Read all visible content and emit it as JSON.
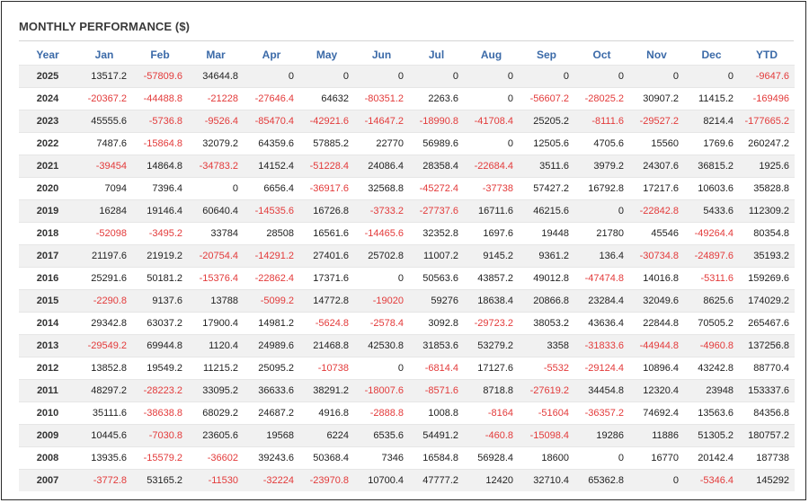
{
  "header": {
    "title": "MONTHLY PERFORMANCE ($)"
  },
  "colors": {
    "negative": "#e33a3a",
    "header_text": "#3b6aa8",
    "stripe": "#f1f1f1"
  },
  "table": {
    "columns": [
      "Year",
      "Jan",
      "Feb",
      "Mar",
      "Apr",
      "May",
      "Jun",
      "Jul",
      "Aug",
      "Sep",
      "Oct",
      "Nov",
      "Dec",
      "YTD"
    ],
    "rows": [
      [
        "2025",
        "13517.2",
        "-57809.6",
        "34644.8",
        "0",
        "0",
        "0",
        "0",
        "0",
        "0",
        "0",
        "0",
        "0",
        "-9647.6"
      ],
      [
        "2024",
        "-20367.2",
        "-44488.8",
        "-21228",
        "-27646.4",
        "64632",
        "-80351.2",
        "2263.6",
        "0",
        "-56607.2",
        "-28025.2",
        "30907.2",
        "11415.2",
        "-169496"
      ],
      [
        "2023",
        "45555.6",
        "-5736.8",
        "-9526.4",
        "-85470.4",
        "-42921.6",
        "-14647.2",
        "-18990.8",
        "-41708.4",
        "25205.2",
        "-8111.6",
        "-29527.2",
        "8214.4",
        "-177665.2"
      ],
      [
        "2022",
        "7487.6",
        "-15864.8",
        "32079.2",
        "64359.6",
        "57885.2",
        "22770",
        "56989.6",
        "0",
        "12505.6",
        "4705.6",
        "15560",
        "1769.6",
        "260247.2"
      ],
      [
        "2021",
        "-39454",
        "14864.8",
        "-34783.2",
        "14152.4",
        "-51228.4",
        "24086.4",
        "28358.4",
        "-22684.4",
        "3511.6",
        "3979.2",
        "24307.6",
        "36815.2",
        "1925.6"
      ],
      [
        "2020",
        "7094",
        "7396.4",
        "0",
        "6656.4",
        "-36917.6",
        "32568.8",
        "-45272.4",
        "-37738",
        "57427.2",
        "16792.8",
        "17217.6",
        "10603.6",
        "35828.8"
      ],
      [
        "2019",
        "16284",
        "19146.4",
        "60640.4",
        "-14535.6",
        "16726.8",
        "-3733.2",
        "-27737.6",
        "16711.6",
        "46215.6",
        "0",
        "-22842.8",
        "5433.6",
        "112309.2"
      ],
      [
        "2018",
        "-52098",
        "-3495.2",
        "33784",
        "28508",
        "16561.6",
        "-14465.6",
        "32352.8",
        "1697.6",
        "19448",
        "21780",
        "45546",
        "-49264.4",
        "80354.8"
      ],
      [
        "2017",
        "21197.6",
        "21919.2",
        "-20754.4",
        "-14291.2",
        "27401.6",
        "25702.8",
        "11007.2",
        "9145.2",
        "9361.2",
        "136.4",
        "-30734.8",
        "-24897.6",
        "35193.2"
      ],
      [
        "2016",
        "25291.6",
        "50181.2",
        "-15376.4",
        "-22862.4",
        "17371.6",
        "0",
        "50563.6",
        "43857.2",
        "49012.8",
        "-47474.8",
        "14016.8",
        "-5311.6",
        "159269.6"
      ],
      [
        "2015",
        "-2290.8",
        "9137.6",
        "13788",
        "-5099.2",
        "14772.8",
        "-19020",
        "59276",
        "18638.4",
        "20866.8",
        "23284.4",
        "32049.6",
        "8625.6",
        "174029.2"
      ],
      [
        "2014",
        "29342.8",
        "63037.2",
        "17900.4",
        "14981.2",
        "-5624.8",
        "-2578.4",
        "3092.8",
        "-29723.2",
        "38053.2",
        "43636.4",
        "22844.8",
        "70505.2",
        "265467.6"
      ],
      [
        "2013",
        "-29549.2",
        "69944.8",
        "1120.4",
        "24989.6",
        "21468.8",
        "42530.8",
        "31853.6",
        "53279.2",
        "3358",
        "-31833.6",
        "-44944.8",
        "-4960.8",
        "137256.8"
      ],
      [
        "2012",
        "13852.8",
        "19549.2",
        "11215.2",
        "25095.2",
        "-10738",
        "0",
        "-6814.4",
        "17127.6",
        "-5532",
        "-29124.4",
        "10896.4",
        "43242.8",
        "88770.4"
      ],
      [
        "2011",
        "48297.2",
        "-28223.2",
        "33095.2",
        "36633.6",
        "38291.2",
        "-18007.6",
        "-8571.6",
        "8718.8",
        "-27619.2",
        "34454.8",
        "12320.4",
        "23948",
        "153337.6"
      ],
      [
        "2010",
        "35111.6",
        "-38638.8",
        "68029.2",
        "24687.2",
        "4916.8",
        "-2888.8",
        "1008.8",
        "-8164",
        "-51604",
        "-36357.2",
        "74692.4",
        "13563.6",
        "84356.8"
      ],
      [
        "2009",
        "10445.6",
        "-7030.8",
        "23605.6",
        "19568",
        "6224",
        "6535.6",
        "54491.2",
        "-460.8",
        "-15098.4",
        "19286",
        "11886",
        "51305.2",
        "180757.2"
      ],
      [
        "2008",
        "13935.6",
        "-15579.2",
        "-36602",
        "39243.6",
        "50368.4",
        "7346",
        "16584.8",
        "56928.4",
        "18600",
        "0",
        "16770",
        "20142.4",
        "187738"
      ],
      [
        "2007",
        "-3772.8",
        "53165.2",
        "-11530",
        "-32224",
        "-23970.8",
        "10700.4",
        "47777.2",
        "12420",
        "32710.4",
        "65362.8",
        "0",
        "-5346.4",
        "145292"
      ]
    ]
  }
}
